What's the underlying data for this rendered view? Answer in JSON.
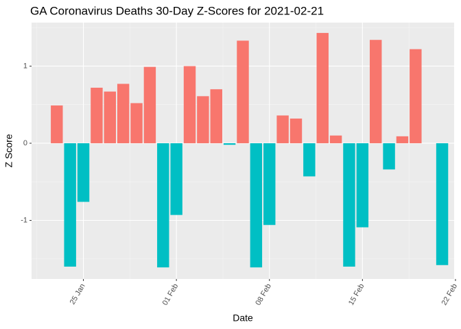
{
  "chart_data": {
    "type": "bar",
    "title": "GA Coronavirus Deaths 30-Day Z-Scores for 2021-02-21",
    "x_label": "Date",
    "y_label": "Z Score",
    "x": [
      23,
      24,
      25,
      26,
      27,
      28,
      29,
      30,
      31,
      32,
      33,
      34,
      35,
      36,
      37,
      38,
      39,
      40,
      41,
      42,
      43,
      44,
      45,
      46,
      47,
      48,
      49,
      50,
      51,
      52
    ],
    "values": [
      0.49,
      -1.6,
      -0.76,
      0.72,
      0.67,
      0.77,
      0.52,
      0.99,
      -1.61,
      -0.93,
      1.0,
      0.61,
      0.7,
      -0.02,
      1.33,
      -1.61,
      -1.06,
      0.36,
      0.32,
      -0.43,
      1.43,
      0.1,
      -1.6,
      -1.09,
      1.34,
      -0.34,
      0.09,
      1.22,
      null,
      -1.58
    ],
    "colors": {
      "positive": "#F8766D",
      "negative": "#00BFC4"
    },
    "xlim": [
      21.1,
      52.9
    ],
    "xticks": [
      {
        "value": 25,
        "label": "25 Jan"
      },
      {
        "value": 32,
        "label": "01 Feb"
      },
      {
        "value": 39,
        "label": "08 Feb"
      },
      {
        "value": 46,
        "label": "15 Feb"
      },
      {
        "value": 53,
        "label": "22 Feb"
      }
    ],
    "ylim": [
      -1.76,
      1.564
    ],
    "yticks": [
      -1,
      0,
      1
    ],
    "grid": true
  }
}
